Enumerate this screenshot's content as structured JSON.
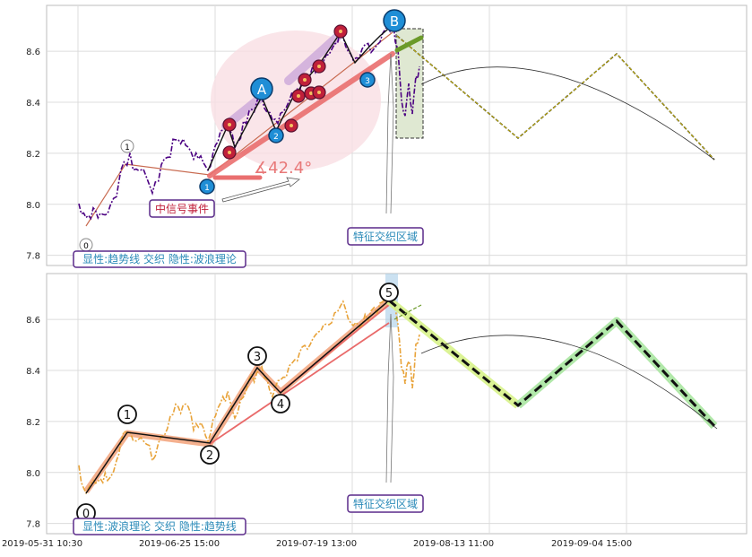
{
  "colors": {
    "purple": "#4b0082",
    "orange": "#e8a33a",
    "salmon": "#e96a6a",
    "light_salmon": "#f2a27a",
    "blue_marker": "#1f8ed6",
    "red_marker": "#c0203a",
    "green_forecast": "#6b9a2a",
    "lime": "#d7f28a",
    "light_green": "#a8e6a0",
    "grid": "#d9d9d9",
    "pink_ellipse": "#f9dfe4",
    "label_border": "#5a2a8a",
    "label_text": "#2a8ab8",
    "event_text": "#c0203a"
  },
  "chart_data": [
    {
      "type": "line",
      "panel": "top",
      "ylim": [
        7.76,
        8.78
      ],
      "yticks": [
        "7.8",
        "8.0",
        "8.2",
        "8.4",
        "8.6"
      ],
      "ytick_values": [
        7.8,
        8.0,
        8.2,
        8.4,
        8.6
      ],
      "grid": true,
      "wave_points": [
        {
          "label": "0",
          "x": 0,
          "y": 7.92
        },
        {
          "label": "1",
          "x": 0.22,
          "y": 8.17
        },
        {
          "label": "1",
          "x": 0.92,
          "y": 8.12
        },
        {
          "label": "2",
          "x": 1.45,
          "y": 8.31
        },
        {
          "label": "3",
          "x": 1.88,
          "y": 8.62
        }
      ],
      "trend_angle_label": "∡42.4°",
      "big_labels": [
        "A",
        "B"
      ],
      "annotations": {
        "event_label": "中信号事件",
        "zone_label": "特征交织区域",
        "legend_label": "显性:趋势线 交织 隐性:波浪理论"
      }
    },
    {
      "type": "line",
      "panel": "bottom",
      "ylim": [
        7.76,
        8.78
      ],
      "yticks": [
        "7.8",
        "8.0",
        "8.2",
        "8.4",
        "8.6"
      ],
      "ytick_values": [
        7.8,
        8.0,
        8.2,
        8.4,
        8.6
      ],
      "xticks": [
        "2019-05-31 10:30",
        "2019-06-25 15:00",
        "2019-07-19 13:00",
        "2019-08-13 11:00",
        "2019-09-04 15:00"
      ],
      "grid": true,
      "wave_points": [
        {
          "label": "0",
          "x": 0.0,
          "y": 7.92
        },
        {
          "label": "1",
          "x": 0.28,
          "y": 8.17
        },
        {
          "label": "2",
          "x": 0.92,
          "y": 8.11
        },
        {
          "label": "3",
          "x": 1.32,
          "y": 8.42
        },
        {
          "label": "4",
          "x": 1.47,
          "y": 8.31
        },
        {
          "label": "5",
          "x": 2.24,
          "y": 8.68
        }
      ],
      "forecast_points": [
        {
          "x": 2.24,
          "y": 8.68
        },
        {
          "x": 3.0,
          "y": 8.27
        },
        {
          "x": 3.68,
          "y": 8.6
        },
        {
          "x": 4.28,
          "y": 8.19
        }
      ],
      "annotations": {
        "zone_label": "特征交织区域",
        "legend_label": "显性:波浪理论 交织 隐性:趋势线"
      }
    }
  ]
}
